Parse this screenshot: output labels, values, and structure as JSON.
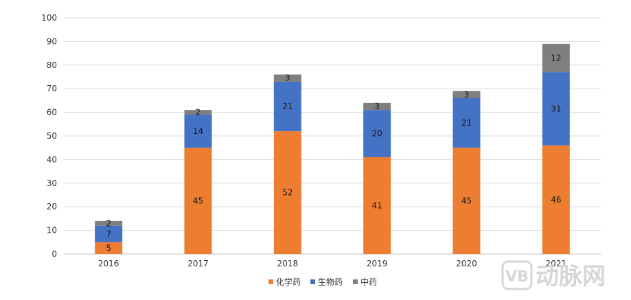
{
  "chart_data": {
    "type": "bar",
    "stacked": true,
    "title": "",
    "xlabel": "",
    "ylabel": "",
    "categories": [
      "2016",
      "2017",
      "2018",
      "2019",
      "2020",
      "2021"
    ],
    "series": [
      {
        "name": "化学药",
        "color": "#ED7D31",
        "values": [
          5,
          45,
          52,
          41,
          45,
          46
        ]
      },
      {
        "name": "生物药",
        "color": "#4472C4",
        "values": [
          7,
          14,
          21,
          20,
          21,
          31
        ]
      },
      {
        "name": "中药",
        "color": "#7F7F7F",
        "values": [
          2,
          2,
          3,
          3,
          3,
          12
        ]
      }
    ],
    "ylim": [
      0,
      100
    ],
    "yticks": [
      0,
      10,
      20,
      30,
      40,
      50,
      60,
      70,
      80,
      90,
      100
    ],
    "grid": true,
    "legend_position": "bottom-center"
  },
  "watermark": {
    "logo": "VB",
    "text": "动脉网"
  }
}
